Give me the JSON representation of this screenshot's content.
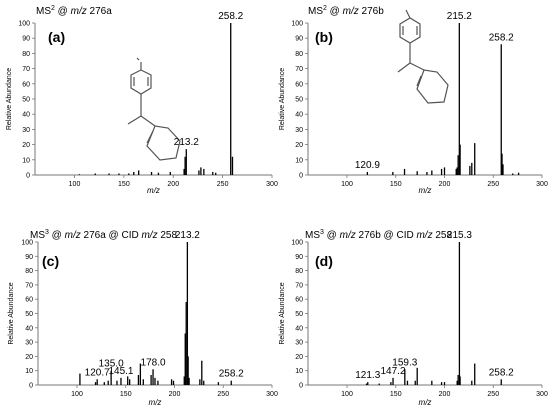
{
  "chart_data": [
    {
      "type": "bar",
      "title_parts": {
        "pre": "MS",
        "sup": "2",
        "mid": " @ ",
        "italic": "m/z",
        "post": " 276a"
      },
      "letter": "(a)",
      "xlabel": "m/z",
      "ylabel": "Relative Abundance",
      "xlim": [
        60,
        300
      ],
      "ylim": [
        0,
        100
      ],
      "xticks": [
        "100",
        "150",
        "200",
        "250",
        "300"
      ],
      "yticks": [
        "0",
        "10",
        "20",
        "30",
        "40",
        "50",
        "60",
        "70",
        "80",
        "90",
        "100"
      ],
      "peaks": [
        {
          "x": 258.2,
          "y": 100,
          "label": "258.2"
        },
        {
          "x": 213.2,
          "y": 17,
          "label": "213.2"
        },
        {
          "x": 260,
          "y": 12
        },
        {
          "x": 212,
          "y": 12
        },
        {
          "x": 211,
          "y": 4
        },
        {
          "x": 228,
          "y": 5
        },
        {
          "x": 231,
          "y": 4
        },
        {
          "x": 226,
          "y": 3
        },
        {
          "x": 240,
          "y": 2
        },
        {
          "x": 243,
          "y": 1.5
        },
        {
          "x": 197,
          "y": 2
        },
        {
          "x": 185,
          "y": 1.5
        },
        {
          "x": 178,
          "y": 2
        },
        {
          "x": 165,
          "y": 3
        },
        {
          "x": 160,
          "y": 2
        },
        {
          "x": 155,
          "y": 1
        },
        {
          "x": 145,
          "y": 1
        },
        {
          "x": 135,
          "y": 1
        },
        {
          "x": 121,
          "y": 1
        },
        {
          "x": 105,
          "y": 0.5
        }
      ]
    },
    {
      "type": "bar",
      "title_parts": {
        "pre": "MS",
        "sup": "2",
        "mid": " @ ",
        "italic": "m/z",
        "post": " 276b"
      },
      "letter": "(b)",
      "xlabel": "m/z",
      "ylabel": "Relative Abundance",
      "xlim": [
        60,
        300
      ],
      "ylim": [
        0,
        100
      ],
      "xticks": [
        "100",
        "150",
        "200",
        "250",
        "300"
      ],
      "yticks": [
        "0",
        "10",
        "20",
        "30",
        "40",
        "50",
        "60",
        "70",
        "80",
        "90",
        "100"
      ],
      "peaks": [
        {
          "x": 215.2,
          "y": 100,
          "label": "215.2"
        },
        {
          "x": 258.2,
          "y": 86,
          "label": "258.2"
        },
        {
          "x": 120.9,
          "y": 2,
          "label": "120.9"
        },
        {
          "x": 216,
          "y": 20
        },
        {
          "x": 214,
          "y": 13
        },
        {
          "x": 213,
          "y": 5
        },
        {
          "x": 212,
          "y": 4
        },
        {
          "x": 231,
          "y": 21
        },
        {
          "x": 228,
          "y": 8
        },
        {
          "x": 226,
          "y": 6
        },
        {
          "x": 259,
          "y": 14
        },
        {
          "x": 260,
          "y": 7
        },
        {
          "x": 197,
          "y": 4
        },
        {
          "x": 200,
          "y": 5
        },
        {
          "x": 187,
          "y": 3
        },
        {
          "x": 182,
          "y": 2
        },
        {
          "x": 172,
          "y": 2.5
        },
        {
          "x": 159,
          "y": 4
        },
        {
          "x": 147,
          "y": 2
        },
        {
          "x": 270,
          "y": 1
        },
        {
          "x": 276,
          "y": 1.5
        }
      ]
    },
    {
      "type": "bar",
      "title_parts": {
        "pre": "MS",
        "sup": "3",
        "mid": " @ ",
        "italic": "m/z",
        "post": " 276a @ CID ",
        "italic2": "m/z",
        "post2": " 258"
      },
      "letter": "(c)",
      "xlabel": "m/z",
      "ylabel": "Relative Abundance",
      "xlim": [
        60,
        300
      ],
      "ylim": [
        0,
        100
      ],
      "xticks": [
        "100",
        "150",
        "200",
        "250",
        "300"
      ],
      "yticks": [
        "0",
        "10",
        "20",
        "30",
        "40",
        "50",
        "60",
        "70",
        "80",
        "90",
        "100"
      ],
      "peaks": [
        {
          "x": 213.2,
          "y": 100,
          "label": "213.2"
        },
        {
          "x": 135.0,
          "y": 10,
          "label": "135.0"
        },
        {
          "x": 178.0,
          "y": 11,
          "label": "178.0"
        },
        {
          "x": 145.1,
          "y": 5,
          "label": "145.1"
        },
        {
          "x": 120.7,
          "y": 4,
          "label": "120.7"
        },
        {
          "x": 258.2,
          "y": 3,
          "label": "258.2"
        },
        {
          "x": 212,
          "y": 58
        },
        {
          "x": 211,
          "y": 36
        },
        {
          "x": 210,
          "y": 6
        },
        {
          "x": 214,
          "y": 20
        },
        {
          "x": 215,
          "y": 5
        },
        {
          "x": 228,
          "y": 17
        },
        {
          "x": 226,
          "y": 4
        },
        {
          "x": 230,
          "y": 3
        },
        {
          "x": 165,
          "y": 15
        },
        {
          "x": 163,
          "y": 7
        },
        {
          "x": 168,
          "y": 4
        },
        {
          "x": 176,
          "y": 7
        },
        {
          "x": 180,
          "y": 5
        },
        {
          "x": 183,
          "y": 3
        },
        {
          "x": 197,
          "y": 4
        },
        {
          "x": 199,
          "y": 3
        },
        {
          "x": 152,
          "y": 6
        },
        {
          "x": 154,
          "y": 4
        },
        {
          "x": 141,
          "y": 3
        },
        {
          "x": 132,
          "y": 3
        },
        {
          "x": 128,
          "y": 2
        },
        {
          "x": 119,
          "y": 2
        },
        {
          "x": 103,
          "y": 8
        },
        {
          "x": 245,
          "y": 2
        }
      ]
    },
    {
      "type": "bar",
      "title_parts": {
        "pre": "MS",
        "sup": "3",
        "mid": " @ ",
        "italic": "m/z",
        "post": " 276b @ CID ",
        "italic2": "m/z",
        "post2": " 258"
      },
      "letter": "(d)",
      "xlabel": "m/z",
      "ylabel": "Relative Abundance",
      "xlim": [
        60,
        300
      ],
      "ylim": [
        0,
        100
      ],
      "xticks": [
        "100",
        "150",
        "200",
        "250",
        "300"
      ],
      "yticks": [
        "0",
        "10",
        "20",
        "30",
        "40",
        "50",
        "60",
        "70",
        "80",
        "90",
        "100"
      ],
      "peaks": [
        {
          "x": 215.3,
          "y": 100,
          "label": "215.3"
        },
        {
          "x": 147.2,
          "y": 5,
          "label": "147.2"
        },
        {
          "x": 159.3,
          "y": 11,
          "label": "159.3"
        },
        {
          "x": 121.3,
          "y": 2,
          "label": "121.3"
        },
        {
          "x": 258.2,
          "y": 4,
          "label": "258.2"
        },
        {
          "x": 214,
          "y": 7
        },
        {
          "x": 216,
          "y": 6
        },
        {
          "x": 213,
          "y": 3
        },
        {
          "x": 231,
          "y": 15
        },
        {
          "x": 228,
          "y": 3
        },
        {
          "x": 172,
          "y": 12
        },
        {
          "x": 170,
          "y": 3
        },
        {
          "x": 162,
          "y": 3
        },
        {
          "x": 187,
          "y": 3
        },
        {
          "x": 200,
          "y": 2
        },
        {
          "x": 197,
          "y": 2
        },
        {
          "x": 145,
          "y": 2
        },
        {
          "x": 133,
          "y": 1
        },
        {
          "x": 120,
          "y": 1
        }
      ]
    }
  ]
}
